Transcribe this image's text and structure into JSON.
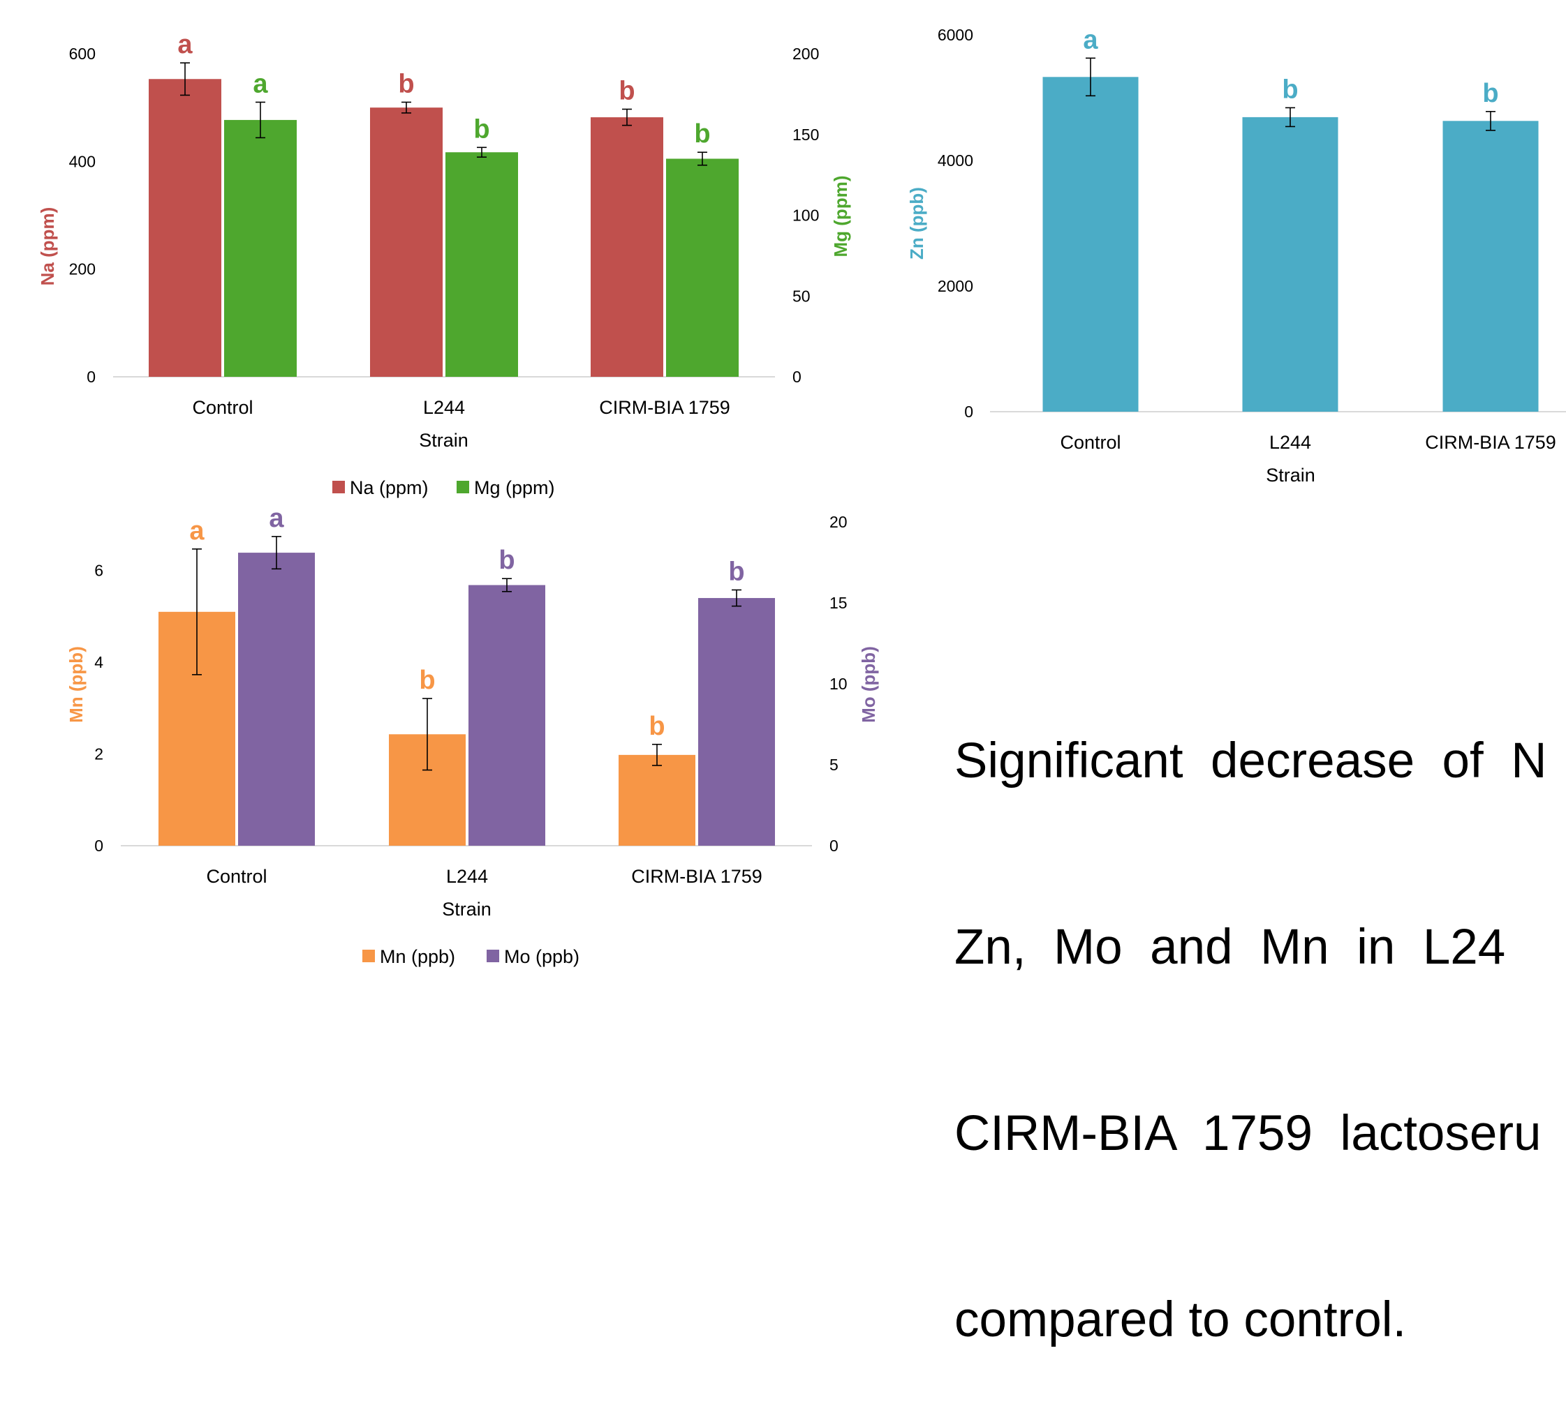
{
  "chart_data": [
    {
      "type": "bar",
      "xlabel": "Strain",
      "ylabel": "Na (ppm)",
      "y2label": "Mg (ppm)",
      "categories": [
        "Control",
        "L244",
        "CIRM-BIA 1759"
      ],
      "ylim": [
        0,
        600
      ],
      "y2lim": [
        0,
        200
      ],
      "yticks": [
        0,
        200,
        400,
        600
      ],
      "y2ticks": [
        0,
        50,
        100,
        150,
        200
      ],
      "legend_position": "bottom",
      "series": [
        {
          "name": "Na (ppm)",
          "axis": "left",
          "color": "#C0504D",
          "values": [
            553,
            500,
            482
          ],
          "errors": [
            30,
            10,
            15
          ],
          "letters": [
            "a",
            "b",
            "b"
          ]
        },
        {
          "name": "Mg (ppm)",
          "axis": "right",
          "color": "#4EA72E",
          "values": [
            159,
            139,
            135
          ],
          "errors": [
            11,
            3,
            4
          ],
          "letters": [
            "a",
            "b",
            "b"
          ]
        }
      ]
    },
    {
      "type": "bar",
      "xlabel": "Strain",
      "ylabel": "Zn (ppb)",
      "categories": [
        "Control",
        "L244",
        "CIRM-BIA 1759"
      ],
      "ylim": [
        0,
        6000
      ],
      "yticks": [
        0,
        2000,
        4000,
        6000
      ],
      "series": [
        {
          "color": "#4BACC6",
          "values": [
            5330,
            4690,
            4630
          ],
          "errors": [
            300,
            150,
            150
          ],
          "letters": [
            "a",
            "b",
            "b"
          ]
        }
      ]
    },
    {
      "type": "bar",
      "xlabel": "Strain",
      "ylabel": "Mn (ppb)",
      "y2label": "Mo (ppb)",
      "categories": [
        "Control",
        "L244",
        "CIRM-BIA 1759"
      ],
      "ylim": [
        0,
        7.06
      ],
      "y2lim": [
        0,
        20
      ],
      "yticks": [
        0,
        2,
        4,
        6
      ],
      "y2ticks": [
        0,
        5,
        10,
        15,
        20
      ],
      "legend_position": "bottom",
      "series": [
        {
          "name": "Mn (ppb)",
          "axis": "left",
          "color": "#F79646",
          "values": [
            5.1,
            2.43,
            1.98
          ],
          "errors": [
            1.37,
            0.78,
            0.23
          ],
          "letters": [
            "a",
            "b",
            "b"
          ]
        },
        {
          "name": "Mo (ppb)",
          "axis": "right",
          "color": "#8064A2",
          "values": [
            18.1,
            16.1,
            15.3
          ],
          "errors": [
            1.0,
            0.4,
            0.5
          ],
          "letters": [
            "a",
            "b",
            "b"
          ]
        }
      ]
    }
  ],
  "statement": {
    "lines": [
      "Significant  decrease  of  N",
      "Zn,  Mo  and  Mn  in  L24",
      "CIRM-BIA  1759  lactoseru",
      "compared to control."
    ]
  }
}
